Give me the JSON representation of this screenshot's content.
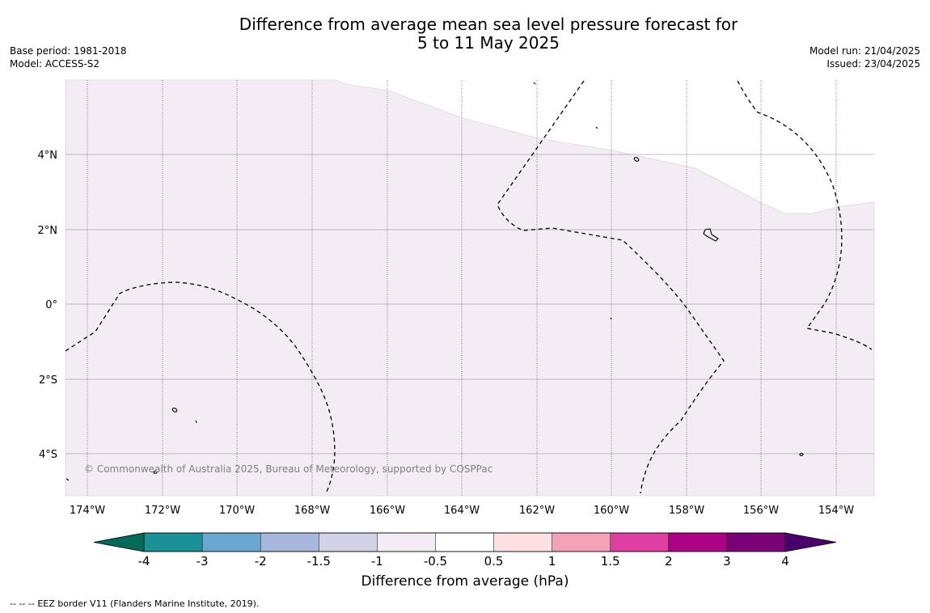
{
  "header": {
    "title_line1": "Difference from average mean sea level pressure forecast for",
    "title_line2": "5 to 11 May 2025",
    "base_period": "Base period: 1981-2018",
    "model": "Model: ACCESS-S2",
    "model_run": "Model run: 21/04/2025",
    "issued": "Issued: 23/04/2025"
  },
  "map": {
    "latitude_labels": [
      "4°N",
      "2°N",
      "0°",
      "2°S",
      "4°S"
    ],
    "longitude_labels": [
      "174°W",
      "172°W",
      "170°W",
      "168°W",
      "166°W",
      "164°W",
      "162°W",
      "160°W",
      "158°W",
      "156°W",
      "154°W"
    ],
    "copyright": "© Commonwealth of Australia 2025, Bureau of Meteorology, supported by COSPPac",
    "fill_color": "#f3ecf4",
    "boundary_line": "EEZ border dashed"
  },
  "colorbar": {
    "tick_labels": [
      "-4",
      "-3",
      "-2",
      "-1.5",
      "-1",
      "-0.5",
      "0.5",
      "1",
      "1.5",
      "2",
      "3",
      "4"
    ],
    "colors": [
      "#1a9196",
      "#6aa8d0",
      "#a7b8dc",
      "#d3d2e6",
      "#f3ecf4",
      "#ffffff",
      "#fde0e2",
      "#f6a1ba",
      "#de3fa0",
      "#ad0186",
      "#7a0176"
    ],
    "low_extension_color": "#006b5a",
    "high_extension_color": "#4a006a",
    "title": "Difference from average (hPa)"
  },
  "footer": {
    "legend_symbol": "-- -- --",
    "legend_text": "EEZ border V11 (Flanders Marine Institute, 2019)."
  }
}
